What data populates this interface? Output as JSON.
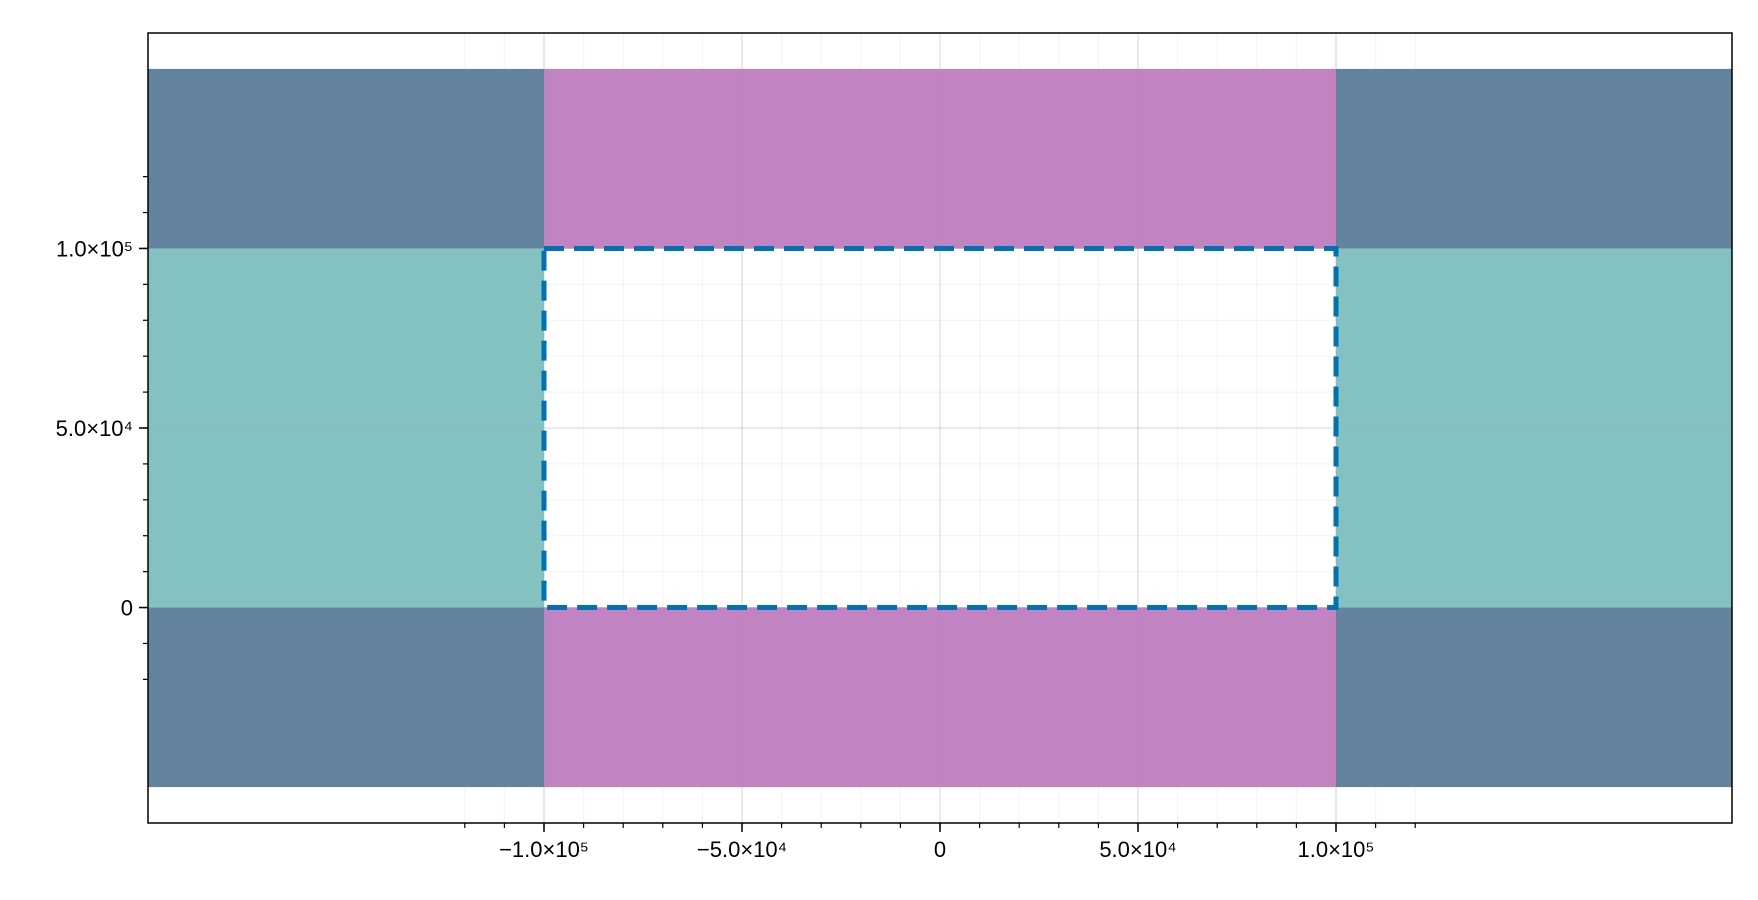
{
  "chart_data": {
    "type": "area",
    "title": "",
    "xlabel": "",
    "ylabel": "",
    "xlim": [
      -200000,
      200000
    ],
    "ylim": [
      -60000,
      160000
    ],
    "grid": true,
    "x_ticks": [
      {
        "value": -100000,
        "label": "−1.0×10⁵"
      },
      {
        "value": -50000,
        "label": "−5.0×10⁴"
      },
      {
        "value": 0,
        "label": "0"
      },
      {
        "value": 50000,
        "label": "5.0×10⁴"
      },
      {
        "value": 100000,
        "label": "1.0×10⁵"
      }
    ],
    "y_ticks": [
      {
        "value": 0,
        "label": "0"
      },
      {
        "value": 50000,
        "label": "5.0×10⁴"
      },
      {
        "value": 100000,
        "label": "1.0×10⁵"
      }
    ],
    "x_minor_step": 10000,
    "y_minor_step": 10000,
    "regions": [
      {
        "name": "corner-top-left",
        "x": [
          -200000,
          -100000
        ],
        "y": [
          100000,
          150000
        ],
        "color": "#5f7f9c"
      },
      {
        "name": "corner-top-right",
        "x": [
          100000,
          200000
        ],
        "y": [
          100000,
          150000
        ],
        "color": "#5f7f9c"
      },
      {
        "name": "corner-bottom-left",
        "x": [
          -200000,
          -100000
        ],
        "y": [
          -50000,
          0
        ],
        "color": "#5f7f9c"
      },
      {
        "name": "corner-bottom-right",
        "x": [
          100000,
          200000
        ],
        "y": [
          -50000,
          0
        ],
        "color": "#5f7f9c"
      },
      {
        "name": "band-top",
        "x": [
          -100000,
          100000
        ],
        "y": [
          100000,
          150000
        ],
        "color": "#bf7fbf"
      },
      {
        "name": "band-bottom",
        "x": [
          -100000,
          100000
        ],
        "y": [
          -50000,
          0
        ],
        "color": "#bf7fbf"
      },
      {
        "name": "band-left",
        "x": [
          -200000,
          -100000
        ],
        "y": [
          0,
          100000
        ],
        "color": "#80bfbf"
      },
      {
        "name": "band-right",
        "x": [
          100000,
          200000
        ],
        "y": [
          0,
          100000
        ],
        "color": "#80bfbf"
      }
    ],
    "outline": {
      "x": [
        -100000,
        100000
      ],
      "y": [
        0,
        100000
      ],
      "color": "#0072b2",
      "style": "dashed"
    }
  }
}
